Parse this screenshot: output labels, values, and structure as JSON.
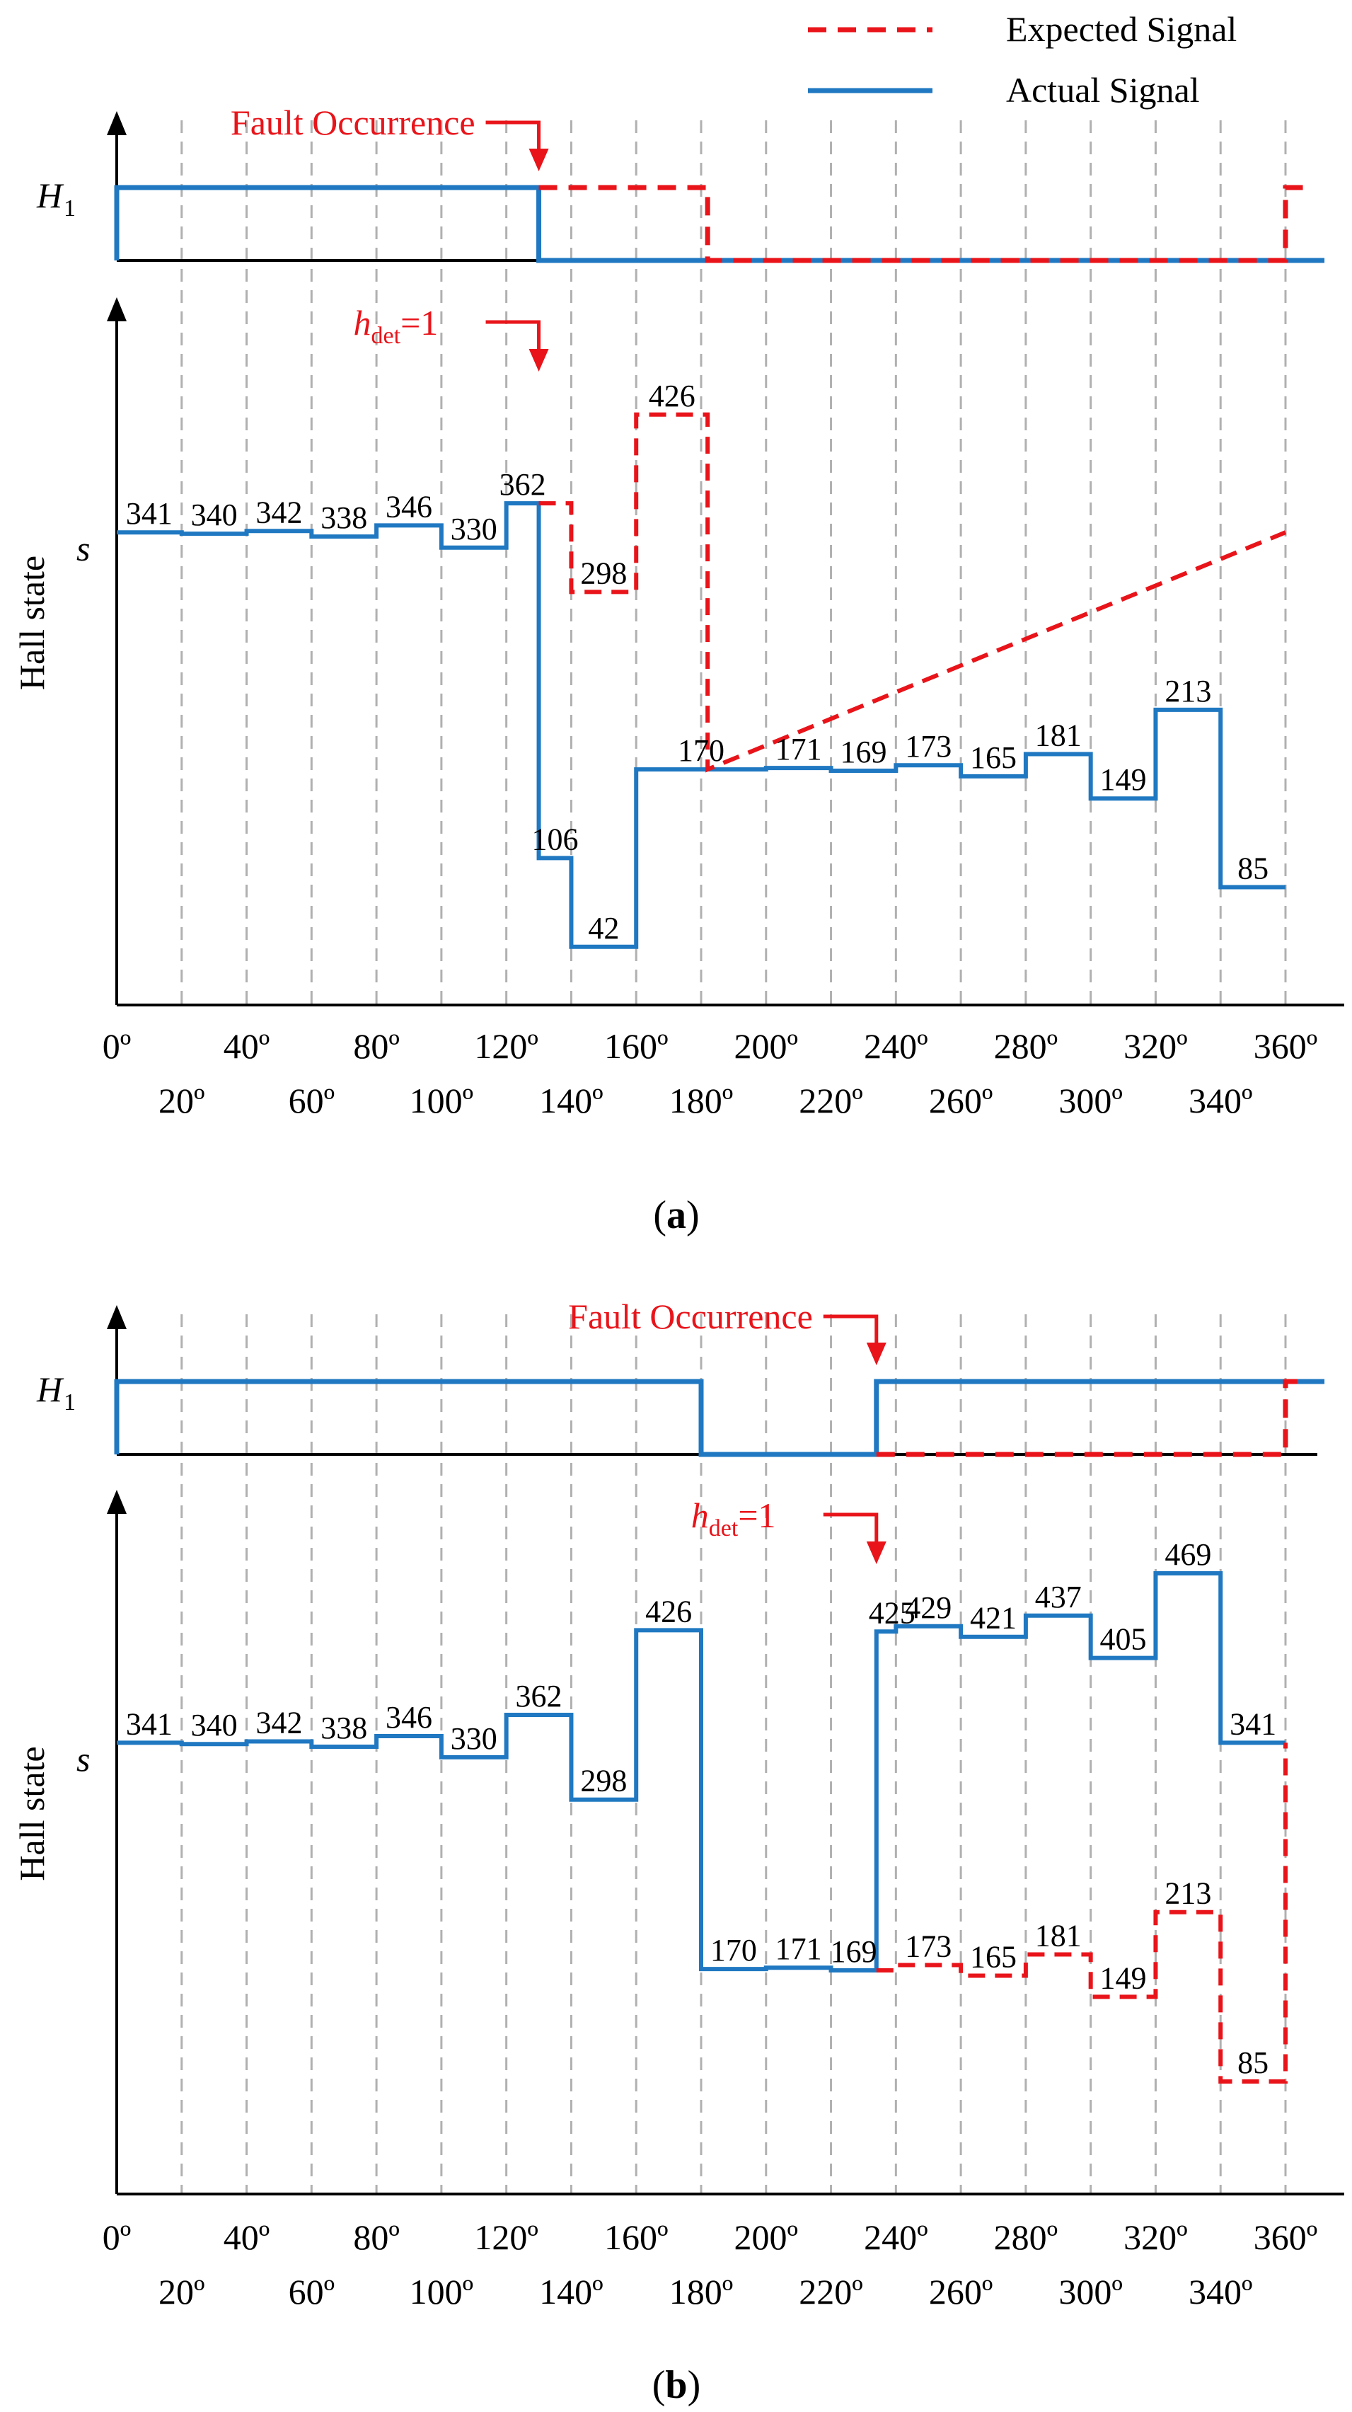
{
  "legend": {
    "expected_label": "Expected Signal",
    "actual_label": "Actual Signal",
    "expected_color": "#e8141a",
    "actual_color": "#1f78c1",
    "expected_style": "dashed",
    "actual_style": "solid"
  },
  "colors": {
    "axis": "#000000",
    "grid": "#b0b0b0",
    "annotation": "#e8141a",
    "text": "#000000"
  },
  "chart_data": [
    {
      "type": "line",
      "panel": "a",
      "caption": "(a)",
      "caption_letter": "a",
      "step": true,
      "x_unit": "degrees",
      "x_ticks_upper": [
        "0º",
        "40º",
        "80º",
        "120º",
        "160º",
        "200º",
        "240º",
        "280º",
        "320º",
        "360º"
      ],
      "x_ticks_lower": [
        "20º",
        "60º",
        "100º",
        "140º",
        "180º",
        "220º",
        "260º",
        "300º",
        "340º"
      ],
      "xlim": [
        0,
        375
      ],
      "grid": "vertical dashed every 20º",
      "h1": {
        "label": "H",
        "label_sub": "1",
        "actual": [
          {
            "x": 0,
            "y": 1
          },
          {
            "x": 130,
            "y": 1
          },
          {
            "x": 130,
            "y": 0
          },
          {
            "x": 372,
            "y": 0
          }
        ],
        "expected": [
          {
            "x": 130,
            "y": 1
          },
          {
            "x": 182,
            "y": 1
          },
          {
            "x": 182,
            "y": 0
          },
          {
            "x": 360,
            "y": 0
          },
          {
            "x": 360,
            "y": 1
          },
          {
            "x": 366,
            "y": 1
          }
        ]
      },
      "hall": {
        "ylabel": "Hall state",
        "s_label": "s",
        "ylim": [
          0,
          480
        ],
        "actual_levels": [
          {
            "x0": 0,
            "x1": 20,
            "v": 341,
            "label": "341"
          },
          {
            "x0": 20,
            "x1": 40,
            "v": 340,
            "label": "340"
          },
          {
            "x0": 40,
            "x1": 60,
            "v": 342,
            "label": "342"
          },
          {
            "x0": 60,
            "x1": 80,
            "v": 338,
            "label": "338"
          },
          {
            "x0": 80,
            "x1": 100,
            "v": 346,
            "label": "346"
          },
          {
            "x0": 100,
            "x1": 120,
            "v": 330,
            "label": "330"
          },
          {
            "x0": 120,
            "x1": 130,
            "v": 362,
            "label": "362"
          },
          {
            "x0": 130,
            "x1": 140,
            "v": 106,
            "label": "106"
          },
          {
            "x0": 140,
            "x1": 160,
            "v": 42,
            "label": "42"
          },
          {
            "x0": 160,
            "x1": 200,
            "v": 170,
            "label": "170"
          },
          {
            "x0": 200,
            "x1": 220,
            "v": 171,
            "label": "171"
          },
          {
            "x0": 220,
            "x1": 240,
            "v": 169,
            "label": "169"
          },
          {
            "x0": 240,
            "x1": 260,
            "v": 173,
            "label": "173"
          },
          {
            "x0": 260,
            "x1": 280,
            "v": 165,
            "label": "165"
          },
          {
            "x0": 280,
            "x1": 300,
            "v": 181,
            "label": "181"
          },
          {
            "x0": 300,
            "x1": 320,
            "v": 149,
            "label": "149"
          },
          {
            "x0": 320,
            "x1": 340,
            "v": 213,
            "label": "213"
          },
          {
            "x0": 340,
            "x1": 360,
            "v": 85,
            "label": "85"
          }
        ],
        "expected_levels": [
          {
            "x0": 130,
            "x1": 140,
            "v": 362
          },
          {
            "x0": 140,
            "x1": 160,
            "v": 298,
            "label": "298"
          },
          {
            "x0": 160,
            "x1": 182,
            "v": 426,
            "label": "426"
          },
          {
            "x0": 182,
            "x1": 182,
            "v": 170
          },
          {
            "x0": 360,
            "x1": 360,
            "v": 341
          }
        ]
      },
      "annotations": [
        {
          "name": "fault",
          "text": "Fault Occurrence",
          "x": 130
        },
        {
          "name": "hdet",
          "text_main": "h",
          "text_sub": "det",
          "text_tail": "=1",
          "x": 130
        }
      ]
    },
    {
      "type": "line",
      "panel": "b",
      "caption": "(b)",
      "caption_letter": "b",
      "step": true,
      "x_unit": "degrees",
      "x_ticks_upper": [
        "0º",
        "40º",
        "80º",
        "120º",
        "160º",
        "200º",
        "240º",
        "280º",
        "320º",
        "360º"
      ],
      "x_ticks_lower": [
        "20º",
        "60º",
        "100º",
        "140º",
        "180º",
        "220º",
        "260º",
        "300º",
        "340º"
      ],
      "xlim": [
        0,
        375
      ],
      "grid": "vertical dashed every 20º",
      "h1": {
        "label": "H",
        "label_sub": "1",
        "actual": [
          {
            "x": 0,
            "y": 1
          },
          {
            "x": 180,
            "y": 1
          },
          {
            "x": 180,
            "y": 0
          },
          {
            "x": 234,
            "y": 0
          },
          {
            "x": 234,
            "y": 1
          },
          {
            "x": 372,
            "y": 1
          }
        ],
        "expected": [
          {
            "x": 234,
            "y": 0
          },
          {
            "x": 360,
            "y": 0
          },
          {
            "x": 360,
            "y": 1
          },
          {
            "x": 366,
            "y": 1
          }
        ]
      },
      "hall": {
        "ylabel": "Hall state",
        "s_label": "s",
        "ylim": [
          0,
          500
        ],
        "actual_levels": [
          {
            "x0": 0,
            "x1": 20,
            "v": 341,
            "label": "341"
          },
          {
            "x0": 20,
            "x1": 40,
            "v": 340,
            "label": "340"
          },
          {
            "x0": 40,
            "x1": 60,
            "v": 342,
            "label": "342"
          },
          {
            "x0": 60,
            "x1": 80,
            "v": 338,
            "label": "338"
          },
          {
            "x0": 80,
            "x1": 100,
            "v": 346,
            "label": "346"
          },
          {
            "x0": 100,
            "x1": 120,
            "v": 330,
            "label": "330"
          },
          {
            "x0": 120,
            "x1": 140,
            "v": 362,
            "label": "362"
          },
          {
            "x0": 140,
            "x1": 160,
            "v": 298,
            "label": "298"
          },
          {
            "x0": 160,
            "x1": 180,
            "v": 426,
            "label": "426"
          },
          {
            "x0": 180,
            "x1": 200,
            "v": 170,
            "label": "170"
          },
          {
            "x0": 200,
            "x1": 220,
            "v": 171,
            "label": "171"
          },
          {
            "x0": 220,
            "x1": 234,
            "v": 169,
            "label": "169"
          },
          {
            "x0": 234,
            "x1": 240,
            "v": 425,
            "label": "425"
          },
          {
            "x0": 240,
            "x1": 260,
            "v": 429,
            "label": "429"
          },
          {
            "x0": 260,
            "x1": 280,
            "v": 421,
            "label": "421"
          },
          {
            "x0": 280,
            "x1": 300,
            "v": 437,
            "label": "437"
          },
          {
            "x0": 300,
            "x1": 320,
            "v": 405,
            "label": "405"
          },
          {
            "x0": 320,
            "x1": 340,
            "v": 469,
            "label": "469"
          },
          {
            "x0": 340,
            "x1": 360,
            "v": 341,
            "label": "341"
          }
        ],
        "expected_levels": [
          {
            "x0": 234,
            "x1": 240,
            "v": 169
          },
          {
            "x0": 240,
            "x1": 260,
            "v": 173,
            "label": "173"
          },
          {
            "x0": 260,
            "x1": 280,
            "v": 165,
            "label": "165"
          },
          {
            "x0": 280,
            "x1": 300,
            "v": 181,
            "label": "181"
          },
          {
            "x0": 300,
            "x1": 320,
            "v": 149,
            "label": "149"
          },
          {
            "x0": 320,
            "x1": 340,
            "v": 213,
            "label": "213"
          },
          {
            "x0": 340,
            "x1": 360,
            "v": 85,
            "label": "85"
          },
          {
            "x0": 360,
            "x1": 360,
            "v": 341
          }
        ]
      },
      "annotations": [
        {
          "name": "fault",
          "text": "Fault Occurrence",
          "x": 234
        },
        {
          "name": "hdet",
          "text_main": "h",
          "text_sub": "det",
          "text_tail": "=1",
          "x": 234
        }
      ]
    }
  ]
}
